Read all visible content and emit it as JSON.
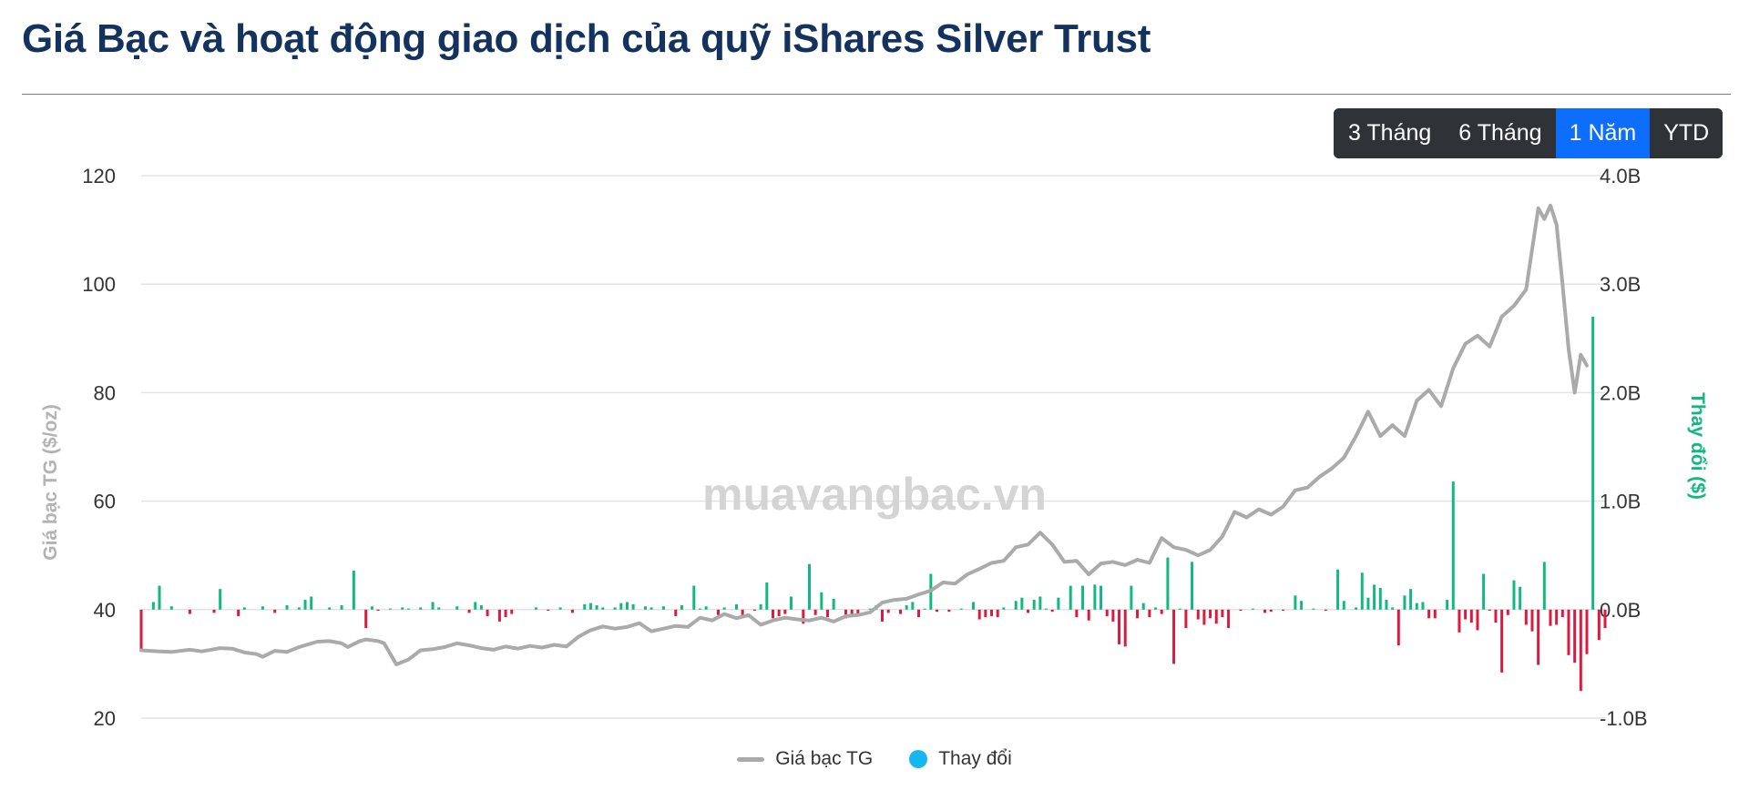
{
  "page": {
    "title": "Giá Bạc và hoạt động giao dịch của quỹ iShares Silver Trust",
    "watermark": "muavangbac.vn"
  },
  "range_selector": {
    "options": [
      "3 Tháng",
      "6 Tháng",
      "1 Năm",
      "YTD"
    ],
    "active": "1 Năm",
    "active_color": "#0d6efd",
    "background_color": "#2f3338"
  },
  "legend": {
    "price_label": "Giá bạc TG",
    "change_label": "Thay đổi",
    "price_color": "#aaaaaa",
    "change_color": "#17b6f0"
  },
  "chart_data": {
    "type": "line",
    "ylabel_left": "Giá bạc TG ($/oz)",
    "ylabel_right": "Thay đổi ($)",
    "yticks_left": [
      "120",
      "100",
      "80",
      "60",
      "40",
      "20"
    ],
    "yticks_right": [
      "4.0B",
      "3.0B",
      "2.0B",
      "1.0B",
      "0.0B",
      "-1.0B"
    ],
    "ylim_left": [
      20,
      120
    ],
    "ylim_right": [
      -1.0,
      4.0
    ],
    "grid": true,
    "legend_position": "bottom",
    "positive_color": "#11b981",
    "negative_color": "#d91b3f",
    "series": [
      {
        "name": "Giá bạc TG",
        "axis": "left",
        "points": [
          [
            0,
            32.5
          ],
          [
            3,
            32.3
          ],
          [
            5,
            32.2
          ],
          [
            8,
            32.6
          ],
          [
            10,
            32.3
          ],
          [
            13,
            32.9
          ],
          [
            15,
            32.8
          ],
          [
            17,
            32.1
          ],
          [
            19,
            31.8
          ],
          [
            20,
            31.3
          ],
          [
            22,
            32.4
          ],
          [
            24,
            32.2
          ],
          [
            26,
            33.1
          ],
          [
            29,
            34.1
          ],
          [
            31,
            34.2
          ],
          [
            33,
            33.8
          ],
          [
            34,
            33.1
          ],
          [
            36,
            34.2
          ],
          [
            37,
            34.5
          ],
          [
            39,
            34.2
          ],
          [
            40,
            33.8
          ],
          [
            42,
            29.9
          ],
          [
            44,
            30.8
          ],
          [
            46,
            32.5
          ],
          [
            48,
            32.7
          ],
          [
            50,
            33.1
          ],
          [
            52,
            33.8
          ],
          [
            54,
            33.4
          ],
          [
            56,
            32.9
          ],
          [
            58,
            32.6
          ],
          [
            60,
            33.2
          ],
          [
            62,
            32.8
          ],
          [
            64,
            33.3
          ],
          [
            66,
            33.0
          ],
          [
            68,
            33.5
          ],
          [
            70,
            33.2
          ],
          [
            72,
            35.0
          ],
          [
            74,
            36.2
          ],
          [
            76,
            36.9
          ],
          [
            78,
            36.5
          ],
          [
            80,
            36.8
          ],
          [
            82,
            37.5
          ],
          [
            84,
            36.0
          ],
          [
            86,
            36.5
          ],
          [
            88,
            37.0
          ],
          [
            90,
            36.8
          ],
          [
            92,
            38.5
          ],
          [
            94,
            38.0
          ],
          [
            96,
            39.2
          ],
          [
            98,
            38.4
          ],
          [
            100,
            39.0
          ],
          [
            102,
            37.2
          ],
          [
            104,
            38.0
          ],
          [
            106,
            38.5
          ],
          [
            108,
            38.2
          ],
          [
            110,
            38.0
          ],
          [
            112,
            38.5
          ],
          [
            114,
            37.8
          ],
          [
            116,
            38.8
          ],
          [
            118,
            39.0
          ],
          [
            120,
            39.5
          ],
          [
            122,
            41.3
          ],
          [
            124,
            41.8
          ],
          [
            126,
            42.0
          ],
          [
            128,
            42.8
          ],
          [
            130,
            43.5
          ],
          [
            132,
            45.0
          ],
          [
            134,
            44.8
          ],
          [
            136,
            46.5
          ],
          [
            138,
            47.5
          ],
          [
            140,
            48.6
          ],
          [
            142,
            49.0
          ],
          [
            144,
            51.5
          ],
          [
            146,
            52.0
          ],
          [
            148,
            54.2
          ],
          [
            150,
            52.0
          ],
          [
            152,
            48.8
          ],
          [
            154,
            49.0
          ],
          [
            156,
            46.5
          ],
          [
            158,
            48.5
          ],
          [
            160,
            48.8
          ],
          [
            162,
            48.2
          ],
          [
            164,
            49.2
          ],
          [
            166,
            48.6
          ],
          [
            168,
            53.2
          ],
          [
            170,
            51.5
          ],
          [
            172,
            51.0
          ],
          [
            174,
            50.0
          ],
          [
            176,
            51.0
          ],
          [
            178,
            53.5
          ],
          [
            180,
            58.0
          ],
          [
            182,
            57.0
          ],
          [
            184,
            58.5
          ],
          [
            186,
            57.5
          ],
          [
            188,
            59.0
          ],
          [
            190,
            62.0
          ],
          [
            192,
            62.5
          ],
          [
            194,
            64.5
          ],
          [
            196,
            66.0
          ],
          [
            198,
            68.0
          ],
          [
            200,
            72.0
          ],
          [
            202,
            76.5
          ],
          [
            204,
            72.0
          ],
          [
            206,
            74.0
          ],
          [
            208,
            72.0
          ],
          [
            210,
            78.5
          ],
          [
            212,
            80.5
          ],
          [
            214,
            77.5
          ],
          [
            216,
            84.5
          ],
          [
            218,
            89.0
          ],
          [
            220,
            90.5
          ],
          [
            222,
            88.5
          ],
          [
            224,
            94.0
          ],
          [
            226,
            96.0
          ],
          [
            228,
            99.0
          ],
          [
            230,
            114.0
          ],
          [
            231,
            112.0
          ],
          [
            232,
            114.5
          ],
          [
            233,
            111.0
          ],
          [
            234,
            100.0
          ],
          [
            235,
            88.0
          ],
          [
            236,
            80.0
          ],
          [
            237,
            87.0
          ],
          [
            238,
            85.0
          ]
        ]
      },
      {
        "name": "Thay đổi",
        "axis": "right",
        "bars": [
          [
            0,
            -0.37
          ],
          [
            2,
            0.07
          ],
          [
            3,
            0.22
          ],
          [
            5,
            0.03
          ],
          [
            8,
            -0.04
          ],
          [
            12,
            -0.03
          ],
          [
            13,
            0.19
          ],
          [
            16,
            -0.06
          ],
          [
            17,
            0.02
          ],
          [
            20,
            0.03
          ],
          [
            22,
            -0.03
          ],
          [
            24,
            0.04
          ],
          [
            26,
            0.02
          ],
          [
            27,
            0.09
          ],
          [
            28,
            0.12
          ],
          [
            31,
            0.02
          ],
          [
            33,
            0.04
          ],
          [
            35,
            0.36
          ],
          [
            37,
            -0.17
          ],
          [
            38,
            0.03
          ],
          [
            39,
            -0.01
          ],
          [
            41,
            0.01
          ],
          [
            43,
            0.02
          ],
          [
            44,
            0.01
          ],
          [
            46,
            0.02
          ],
          [
            48,
            0.07
          ],
          [
            49,
            0.02
          ],
          [
            52,
            0.03
          ],
          [
            54,
            -0.03
          ],
          [
            55,
            0.07
          ],
          [
            56,
            0.04
          ],
          [
            57,
            -0.06
          ],
          [
            59,
            -0.11
          ],
          [
            60,
            -0.07
          ],
          [
            61,
            -0.04
          ],
          [
            65,
            0.02
          ],
          [
            67,
            -0.01
          ],
          [
            69,
            0.02
          ],
          [
            71,
            -0.03
          ],
          [
            73,
            0.05
          ],
          [
            74,
            0.06
          ],
          [
            75,
            0.04
          ],
          [
            76,
            0.02
          ],
          [
            78,
            0.02
          ],
          [
            79,
            0.06
          ],
          [
            80,
            0.07
          ],
          [
            81,
            0.05
          ],
          [
            83,
            0.03
          ],
          [
            84,
            0.02
          ],
          [
            86,
            0.03
          ],
          [
            88,
            -0.06
          ],
          [
            89,
            0.04
          ],
          [
            91,
            0.22
          ],
          [
            92,
            0.01
          ],
          [
            93,
            0.03
          ],
          [
            95,
            -0.05
          ],
          [
            96,
            0.02
          ],
          [
            98,
            0.05
          ],
          [
            99,
            -0.05
          ],
          [
            101,
            -0.01
          ],
          [
            102,
            0.05
          ],
          [
            103,
            0.25
          ],
          [
            104,
            -0.08
          ],
          [
            105,
            -0.06
          ],
          [
            106,
            -0.04
          ],
          [
            107,
            0.12
          ],
          [
            109,
            -0.13
          ],
          [
            110,
            0.42
          ],
          [
            111,
            -0.05
          ],
          [
            112,
            0.16
          ],
          [
            113,
            -0.07
          ],
          [
            114,
            0.1
          ],
          [
            116,
            -0.08
          ],
          [
            117,
            -0.06
          ],
          [
            118,
            -0.04
          ],
          [
            120,
            0.01
          ],
          [
            121,
            0.04
          ],
          [
            122,
            -0.11
          ],
          [
            123,
            -0.03
          ],
          [
            125,
            -0.04
          ],
          [
            126,
            0.04
          ],
          [
            127,
            0.07
          ],
          [
            128,
            -0.07
          ],
          [
            129,
            0.01
          ],
          [
            130,
            0.33
          ],
          [
            131,
            -0.02
          ],
          [
            133,
            -0.02
          ],
          [
            135,
            0.01
          ],
          [
            137,
            0.07
          ],
          [
            138,
            -0.09
          ],
          [
            139,
            -0.07
          ],
          [
            140,
            -0.06
          ],
          [
            141,
            -0.07
          ],
          [
            142,
            0.02
          ],
          [
            144,
            0.08
          ],
          [
            145,
            0.11
          ],
          [
            146,
            -0.03
          ],
          [
            147,
            0.09
          ],
          [
            148,
            0.12
          ],
          [
            149,
            0.01
          ],
          [
            150,
            -0.02
          ],
          [
            151,
            0.11
          ],
          [
            153,
            0.22
          ],
          [
            154,
            -0.07
          ],
          [
            155,
            0.22
          ],
          [
            156,
            -0.1
          ],
          [
            157,
            0.23
          ],
          [
            158,
            0.22
          ],
          [
            159,
            -0.06
          ],
          [
            160,
            -0.11
          ],
          [
            161,
            -0.32
          ],
          [
            162,
            -0.34
          ],
          [
            163,
            0.22
          ],
          [
            164,
            -0.08
          ],
          [
            165,
            0.06
          ],
          [
            166,
            -0.07
          ],
          [
            167,
            0.02
          ],
          [
            168,
            -0.04
          ],
          [
            169,
            0.48
          ],
          [
            170,
            -0.5
          ],
          [
            171,
            0.01
          ],
          [
            172,
            -0.17
          ],
          [
            173,
            0.44
          ],
          [
            174,
            -0.09
          ],
          [
            175,
            -0.14
          ],
          [
            176,
            -0.08
          ],
          [
            177,
            -0.13
          ],
          [
            178,
            -0.07
          ],
          [
            179,
            -0.17
          ],
          [
            181,
            -0.01
          ],
          [
            183,
            0.01
          ],
          [
            185,
            -0.03
          ],
          [
            186,
            -0.02
          ],
          [
            188,
            -0.01
          ],
          [
            190,
            0.13
          ],
          [
            191,
            0.08
          ],
          [
            193,
            0.01
          ],
          [
            195,
            -0.01
          ],
          [
            197,
            0.37
          ],
          [
            198,
            0.08
          ],
          [
            200,
            0.02
          ],
          [
            201,
            0.34
          ],
          [
            202,
            0.11
          ],
          [
            203,
            0.23
          ],
          [
            204,
            0.2
          ],
          [
            205,
            0.09
          ],
          [
            206,
            0.02
          ],
          [
            207,
            -0.33
          ],
          [
            208,
            0.13
          ],
          [
            209,
            0.19
          ],
          [
            210,
            0.06
          ],
          [
            211,
            0.07
          ],
          [
            212,
            -0.08
          ],
          [
            213,
            -0.08
          ],
          [
            215,
            0.09
          ],
          [
            216,
            1.18
          ],
          [
            217,
            -0.21
          ],
          [
            218,
            -0.09
          ],
          [
            219,
            -0.12
          ],
          [
            220,
            -0.19
          ],
          [
            221,
            0.33
          ],
          [
            222,
            -0.01
          ],
          [
            223,
            -0.12
          ],
          [
            224,
            -0.58
          ],
          [
            225,
            -0.05
          ],
          [
            226,
            0.27
          ],
          [
            227,
            0.21
          ],
          [
            228,
            -0.14
          ],
          [
            229,
            -0.2
          ],
          [
            230,
            -0.51
          ],
          [
            231,
            0.44
          ],
          [
            232,
            -0.15
          ],
          [
            233,
            -0.14
          ],
          [
            234,
            -0.07
          ],
          [
            235,
            -0.42
          ],
          [
            236,
            -0.49
          ],
          [
            237,
            -0.75
          ],
          [
            238,
            -0.41
          ],
          [
            239,
            2.7
          ],
          [
            240,
            -0.28
          ],
          [
            241,
            -0.17
          ]
        ]
      }
    ]
  }
}
